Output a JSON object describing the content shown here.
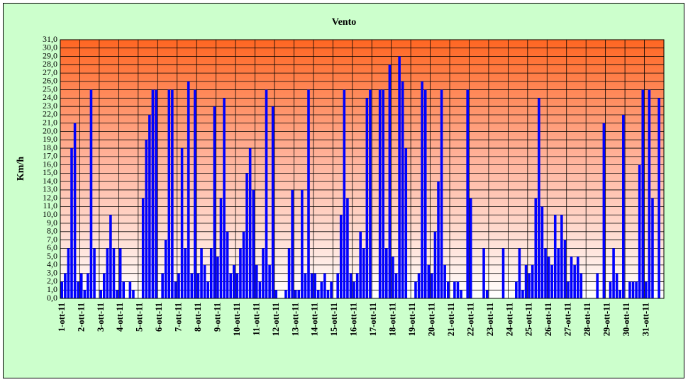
{
  "chart_data": {
    "type": "bar",
    "title": "Vento",
    "y_label": "Km/h",
    "color": "#0000ff",
    "grid": true,
    "categories": [
      "1-ott-11",
      null,
      null,
      null,
      null,
      null,
      "2-ott-11",
      null,
      null,
      null,
      null,
      null,
      "3-ott-11",
      null,
      null,
      null,
      null,
      null,
      "4-ott-11",
      null,
      null,
      null,
      null,
      null,
      "5-ott-11",
      null,
      null,
      null,
      null,
      null,
      "6-ott-11",
      null,
      null,
      null,
      null,
      null,
      "7-ott-11",
      null,
      null,
      null,
      null,
      null,
      "8-ott-11",
      null,
      null,
      null,
      null,
      null,
      "9-ott-11",
      null,
      null,
      null,
      null,
      null,
      "10-ott-11",
      null,
      null,
      null,
      null,
      null,
      "11-ott-11",
      null,
      null,
      null,
      null,
      null,
      "12-ott-11",
      null,
      null,
      null,
      null,
      null,
      "13-ott-11",
      null,
      null,
      null,
      null,
      null,
      "14-ott-11",
      null,
      null,
      null,
      null,
      null,
      "15-ott-11",
      null,
      null,
      null,
      null,
      null,
      "16-ott-11",
      null,
      null,
      null,
      null,
      null,
      "17-ott-11",
      null,
      null,
      null,
      null,
      null,
      "18-ott-11",
      null,
      null,
      null,
      null,
      null,
      "19-ott-11",
      null,
      null,
      null,
      null,
      null,
      "20-ott-11",
      null,
      null,
      null,
      null,
      null,
      "21-ott-11",
      null,
      null,
      null,
      null,
      null,
      "22-ott-11",
      null,
      null,
      null,
      null,
      null,
      "23-ott-11",
      null,
      null,
      null,
      null,
      null,
      "24-ott-11",
      null,
      null,
      null,
      null,
      null,
      "25-ott-11",
      null,
      null,
      null,
      null,
      null,
      "26-ott-11",
      null,
      null,
      null,
      null,
      null,
      "27-ott-11",
      null,
      null,
      null,
      null,
      null,
      "28-ott-11",
      null,
      null,
      null,
      null,
      null,
      "29-ott-11",
      null,
      null,
      null,
      null,
      null,
      "30-ott-11",
      null,
      null,
      null,
      null,
      null,
      "31-ott-11",
      null,
      null,
      null,
      null,
      null
    ],
    "values": [
      2,
      3,
      6,
      18,
      21,
      2,
      3,
      1,
      3,
      25,
      6,
      0,
      1,
      3,
      6,
      10,
      6,
      1,
      6,
      2,
      0,
      2,
      1,
      0,
      0,
      12,
      19,
      22,
      25,
      25,
      0,
      3,
      7,
      25,
      25,
      2,
      3,
      18,
      6,
      26,
      3,
      25,
      3,
      6,
      4,
      2,
      6,
      23,
      5,
      12,
      24,
      8,
      3,
      4,
      3,
      6,
      8,
      15,
      18,
      13,
      4,
      2,
      6,
      25,
      4,
      23,
      1,
      0,
      0,
      1,
      6,
      13,
      1,
      1,
      13,
      3,
      25,
      3,
      3,
      1,
      2,
      3,
      1,
      2,
      0,
      3,
      10,
      25,
      12,
      3,
      2,
      3,
      8,
      6,
      24,
      25,
      0,
      0,
      25,
      25,
      6,
      28,
      5,
      3,
      29,
      26,
      18,
      0,
      0,
      2,
      3,
      26,
      25,
      4,
      3,
      8,
      14,
      25,
      4,
      2,
      0,
      2,
      2,
      1,
      0,
      25,
      12,
      0,
      0,
      0,
      6,
      1,
      0,
      0,
      0,
      0,
      6,
      0,
      0,
      0,
      2,
      6,
      1,
      4,
      3,
      4,
      12,
      24,
      11,
      6,
      5,
      4,
      10,
      6,
      10,
      7,
      2,
      5,
      4,
      5,
      3,
      0,
      0,
      0,
      0,
      3,
      0,
      21,
      0,
      2,
      6,
      3,
      1,
      22,
      0,
      2,
      2,
      2,
      16,
      25,
      2,
      25,
      12,
      0,
      24,
      0
    ],
    "ylim": [
      0,
      31
    ],
    "yticks": [
      {
        "value": 0,
        "label": "0,0"
      },
      {
        "value": 1,
        "label": "1,0"
      },
      {
        "value": 2,
        "label": "2,0"
      },
      {
        "value": 3,
        "label": "3,0"
      },
      {
        "value": 4,
        "label": "4,0"
      },
      {
        "value": 5,
        "label": "5,0"
      },
      {
        "value": 6,
        "label": "6,0"
      },
      {
        "value": 7,
        "label": "7,0"
      },
      {
        "value": 8,
        "label": "8,0"
      },
      {
        "value": 9,
        "label": "9,0"
      },
      {
        "value": 10,
        "label": "10,0"
      },
      {
        "value": 11,
        "label": "11,0"
      },
      {
        "value": 12,
        "label": "12,0"
      },
      {
        "value": 13,
        "label": "13,0"
      },
      {
        "value": 14,
        "label": "14,0"
      },
      {
        "value": 15,
        "label": "15,0"
      },
      {
        "value": 16,
        "label": "16,0"
      },
      {
        "value": 17,
        "label": "17,0"
      },
      {
        "value": 18,
        "label": "18,0"
      },
      {
        "value": 19,
        "label": "19,0"
      },
      {
        "value": 20,
        "label": "20,0"
      },
      {
        "value": 21,
        "label": "21,0"
      },
      {
        "value": 22,
        "label": "22,0"
      },
      {
        "value": 23,
        "label": "23,0"
      },
      {
        "value": 24,
        "label": "24,0"
      },
      {
        "value": 25,
        "label": "25,0"
      },
      {
        "value": 26,
        "label": "26,0"
      },
      {
        "value": 27,
        "label": "27,0"
      },
      {
        "value": 28,
        "label": "28,0"
      },
      {
        "value": 29,
        "label": "29,0"
      },
      {
        "value": 30,
        "label": "30,0"
      },
      {
        "value": 31,
        "label": "31,0"
      }
    ]
  }
}
